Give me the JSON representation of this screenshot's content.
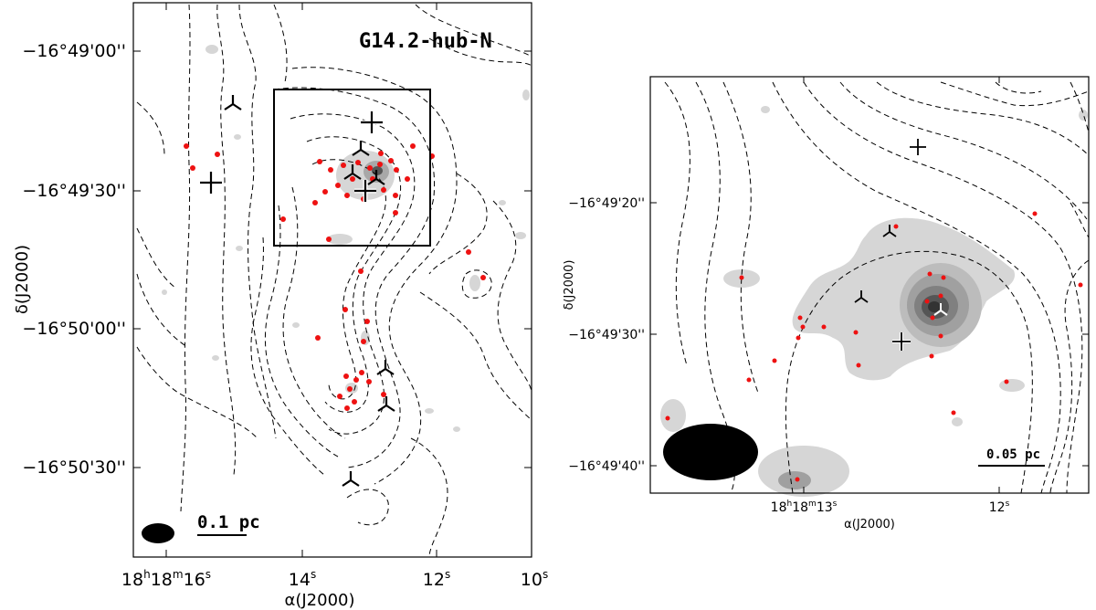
{
  "left_panel": {
    "field_label": "G14.2-hub-N",
    "x_axis_label": "α(J2000)",
    "y_axis_label": "δ(J2000)",
    "x_ticks": [
      {
        "h": "18",
        "hs": "h",
        "m": "18",
        "ms": "m",
        "s": "16",
        "ss": "s"
      },
      {
        "s": "14",
        "ss": "s"
      },
      {
        "s": "12",
        "ss": "s"
      },
      {
        "s": "10",
        "ss": "s"
      }
    ],
    "y_ticks": [
      "−16°49'00''",
      "−16°49'30''",
      "−16°50'00''",
      "−16°50'30''"
    ],
    "scale_bar": "0.1 pc"
  },
  "right_panel": {
    "x_axis_label": "α(J2000)",
    "y_axis_label": "δ(J2000)",
    "x_ticks": [
      {
        "h": "18",
        "hs": "h",
        "m": "18",
        "ms": "m",
        "s": "13",
        "ss": "s"
      },
      {
        "s": "12",
        "ss": "s"
      }
    ],
    "y_ticks": [
      "−16°49'20''",
      "−16°49'30''",
      "−16°49'40''"
    ],
    "scale_bar": "0.05 pc"
  },
  "colors": {
    "source_dots": "#ee1111",
    "contours": "#000000",
    "emission_light": "#d6d6d6",
    "emission_mid": "#a8a8a8",
    "emission_dark": "#555555"
  }
}
